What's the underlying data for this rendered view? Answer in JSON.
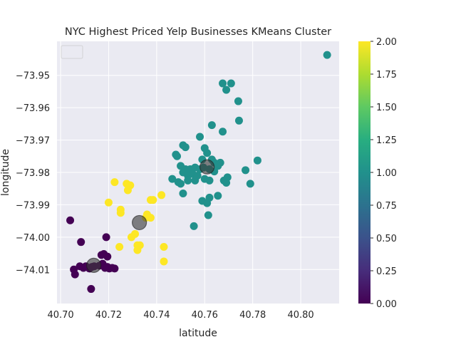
{
  "chart_data": {
    "type": "scatter",
    "title": "NYC Highest Priced Yelp Businesses KMeans Cluster",
    "xlabel": "latitude",
    "ylabel": "longitude",
    "xlim": [
      40.6985,
      40.816
    ],
    "ylim": [
      -74.0205,
      -73.9395
    ],
    "x_ticks": [
      40.7,
      40.72,
      40.74,
      40.76,
      40.78,
      40.8
    ],
    "x_tick_labels": [
      "40.70",
      "40.72",
      "40.74",
      "40.76",
      "40.78",
      "40.80"
    ],
    "y_ticks": [
      -73.95,
      -73.96,
      -73.97,
      -73.98,
      -73.99,
      -74.0,
      -74.01
    ],
    "y_tick_labels": [
      "−73.95",
      "−73.96",
      "−73.97",
      "−73.98",
      "−73.99",
      "−74.00",
      "−74.01"
    ],
    "grid": true,
    "legend": "top-left, empty",
    "colorbar": {
      "colormap": "viridis",
      "range": [
        0,
        2
      ],
      "ticks": [
        0.0,
        0.25,
        0.5,
        0.75,
        1.0,
        1.25,
        1.5,
        1.75,
        2.0
      ],
      "tick_labels": [
        "0.00",
        "0.25",
        "0.50",
        "0.75",
        "1.00",
        "1.25",
        "1.50",
        "1.75",
        "2.00"
      ]
    },
    "colors": {
      "cluster_0": "#440154",
      "cluster_1": "#21918c",
      "cluster_2": "#fde725",
      "background": "#eaeaf2",
      "grid": "#ffffff",
      "centroid": "#3a3a3a"
    },
    "series": [
      {
        "cluster": 0,
        "points": [
          [
            40.704,
            -73.9948
          ],
          [
            40.7085,
            -74.0015
          ],
          [
            40.7055,
            -74.01
          ],
          [
            40.706,
            -74.0115
          ],
          [
            40.708,
            -74.009
          ],
          [
            40.7095,
            -74.0095
          ],
          [
            40.7105,
            -74.009
          ],
          [
            40.712,
            -74.0097
          ],
          [
            40.713,
            -74.0092
          ],
          [
            40.7127,
            -74.016
          ],
          [
            40.7162,
            -74.0088
          ],
          [
            40.717,
            -74.0055
          ],
          [
            40.718,
            -74.0052
          ],
          [
            40.7175,
            -74.0082
          ],
          [
            40.7185,
            -74.0095
          ],
          [
            40.7195,
            -74.0092
          ],
          [
            40.7203,
            -74.0097
          ],
          [
            40.7215,
            -74.0095
          ],
          [
            40.7225,
            -74.0097
          ],
          [
            40.719,
            -74.0
          ],
          [
            40.7195,
            -74.006
          ],
          [
            40.714,
            -74.009
          ]
        ]
      },
      {
        "cluster": 1,
        "points": [
          [
            40.811,
            -73.9437
          ],
          [
            40.7675,
            -73.9525
          ],
          [
            40.771,
            -73.9525
          ],
          [
            40.769,
            -73.9545
          ],
          [
            40.774,
            -73.958
          ],
          [
            40.7743,
            -73.964
          ],
          [
            40.763,
            -73.9654
          ],
          [
            40.7675,
            -73.9674
          ],
          [
            40.758,
            -73.969
          ],
          [
            40.751,
            -73.9716
          ],
          [
            40.752,
            -73.9722
          ],
          [
            40.748,
            -73.9745
          ],
          [
            40.7485,
            -73.975
          ],
          [
            40.76,
            -73.9725
          ],
          [
            40.761,
            -73.974
          ],
          [
            40.759,
            -73.976
          ],
          [
            40.763,
            -73.976
          ],
          [
            40.764,
            -73.977
          ],
          [
            40.7665,
            -73.977
          ],
          [
            40.7655,
            -73.978
          ],
          [
            40.7595,
            -73.9785
          ],
          [
            40.75,
            -73.978
          ],
          [
            40.752,
            -73.979
          ],
          [
            40.754,
            -73.979
          ],
          [
            40.756,
            -73.9785
          ],
          [
            40.758,
            -73.979
          ],
          [
            40.762,
            -73.979
          ],
          [
            40.764,
            -73.9797
          ],
          [
            40.751,
            -73.98
          ],
          [
            40.753,
            -73.981
          ],
          [
            40.755,
            -73.9805
          ],
          [
            40.757,
            -73.981
          ],
          [
            40.76,
            -73.982
          ],
          [
            40.7465,
            -73.982
          ],
          [
            40.749,
            -73.983
          ],
          [
            40.753,
            -73.9825
          ],
          [
            40.756,
            -73.9825
          ],
          [
            40.762,
            -73.9825
          ],
          [
            40.768,
            -73.9825
          ],
          [
            40.7695,
            -73.9815
          ],
          [
            40.769,
            -73.9832
          ],
          [
            40.75,
            -73.9835
          ],
          [
            40.751,
            -73.9865
          ],
          [
            40.759,
            -73.9888
          ],
          [
            40.761,
            -73.9895
          ],
          [
            40.762,
            -73.9878
          ],
          [
            40.7655,
            -73.9872
          ],
          [
            40.779,
            -73.9835
          ],
          [
            40.777,
            -73.9793
          ],
          [
            40.782,
            -73.9763
          ],
          [
            40.7615,
            -73.9932
          ],
          [
            40.7555,
            -73.9966
          ]
        ]
      },
      {
        "cluster": 2,
        "points": [
          [
            40.7225,
            -73.983
          ],
          [
            40.7275,
            -73.9835
          ],
          [
            40.729,
            -73.984
          ],
          [
            40.728,
            -73.9855
          ],
          [
            40.72,
            -73.9893
          ],
          [
            40.725,
            -73.9915
          ],
          [
            40.725,
            -73.9925
          ],
          [
            40.7375,
            -73.9885
          ],
          [
            40.7385,
            -73.9885
          ],
          [
            40.742,
            -73.987
          ],
          [
            40.736,
            -73.993
          ],
          [
            40.7355,
            -73.994
          ],
          [
            40.7375,
            -73.994
          ],
          [
            40.731,
            -73.999
          ],
          [
            40.7295,
            -74.0
          ],
          [
            40.732,
            -74.0025
          ],
          [
            40.733,
            -74.0025
          ],
          [
            40.732,
            -74.004
          ],
          [
            40.7245,
            -74.003
          ],
          [
            40.743,
            -74.003
          ],
          [
            40.743,
            -74.0075
          ]
        ]
      }
    ],
    "centroids": [
      [
        40.7138,
        -74.0087
      ],
      [
        40.761,
        -73.9783
      ],
      [
        40.7328,
        -73.9955
      ]
    ]
  }
}
